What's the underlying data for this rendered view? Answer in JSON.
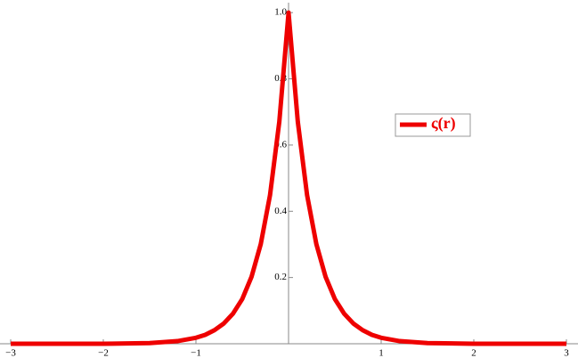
{
  "chart_data": {
    "type": "line",
    "x": [
      -3,
      -2.5,
      -2,
      -1.5,
      -1.2,
      -1,
      -0.9,
      -0.8,
      -0.7,
      -0.6,
      -0.5,
      -0.4,
      -0.3,
      -0.2,
      -0.1,
      0,
      0.1,
      0.2,
      0.3,
      0.4,
      0.5,
      0.6,
      0.7,
      0.8,
      0.9,
      1,
      1.2,
      1.5,
      2,
      2.5,
      3
    ],
    "series": [
      {
        "name": "ς(r)",
        "color": "#ee0000",
        "values": [
          0,
          0,
          0,
          0.002,
          0.008,
          0.018,
          0.027,
          0.041,
          0.061,
          0.091,
          0.135,
          0.202,
          0.301,
          0.449,
          0.67,
          1,
          0.67,
          0.449,
          0.301,
          0.202,
          0.135,
          0.091,
          0.061,
          0.041,
          0.027,
          0.018,
          0.008,
          0.002,
          0,
          0,
          0
        ]
      }
    ],
    "xlim": [
      -3,
      3
    ],
    "ylim": [
      0,
      1.03
    ],
    "xticks": [
      {
        "value": -3,
        "label": "−3"
      },
      {
        "value": -2,
        "label": "−2"
      },
      {
        "value": -1,
        "label": "−1"
      },
      1,
      2,
      3
    ],
    "yticks": [
      0.2,
      0.4,
      0.6,
      0.8,
      {
        "value": 1,
        "label": "1.0"
      }
    ],
    "legend": "right"
  }
}
